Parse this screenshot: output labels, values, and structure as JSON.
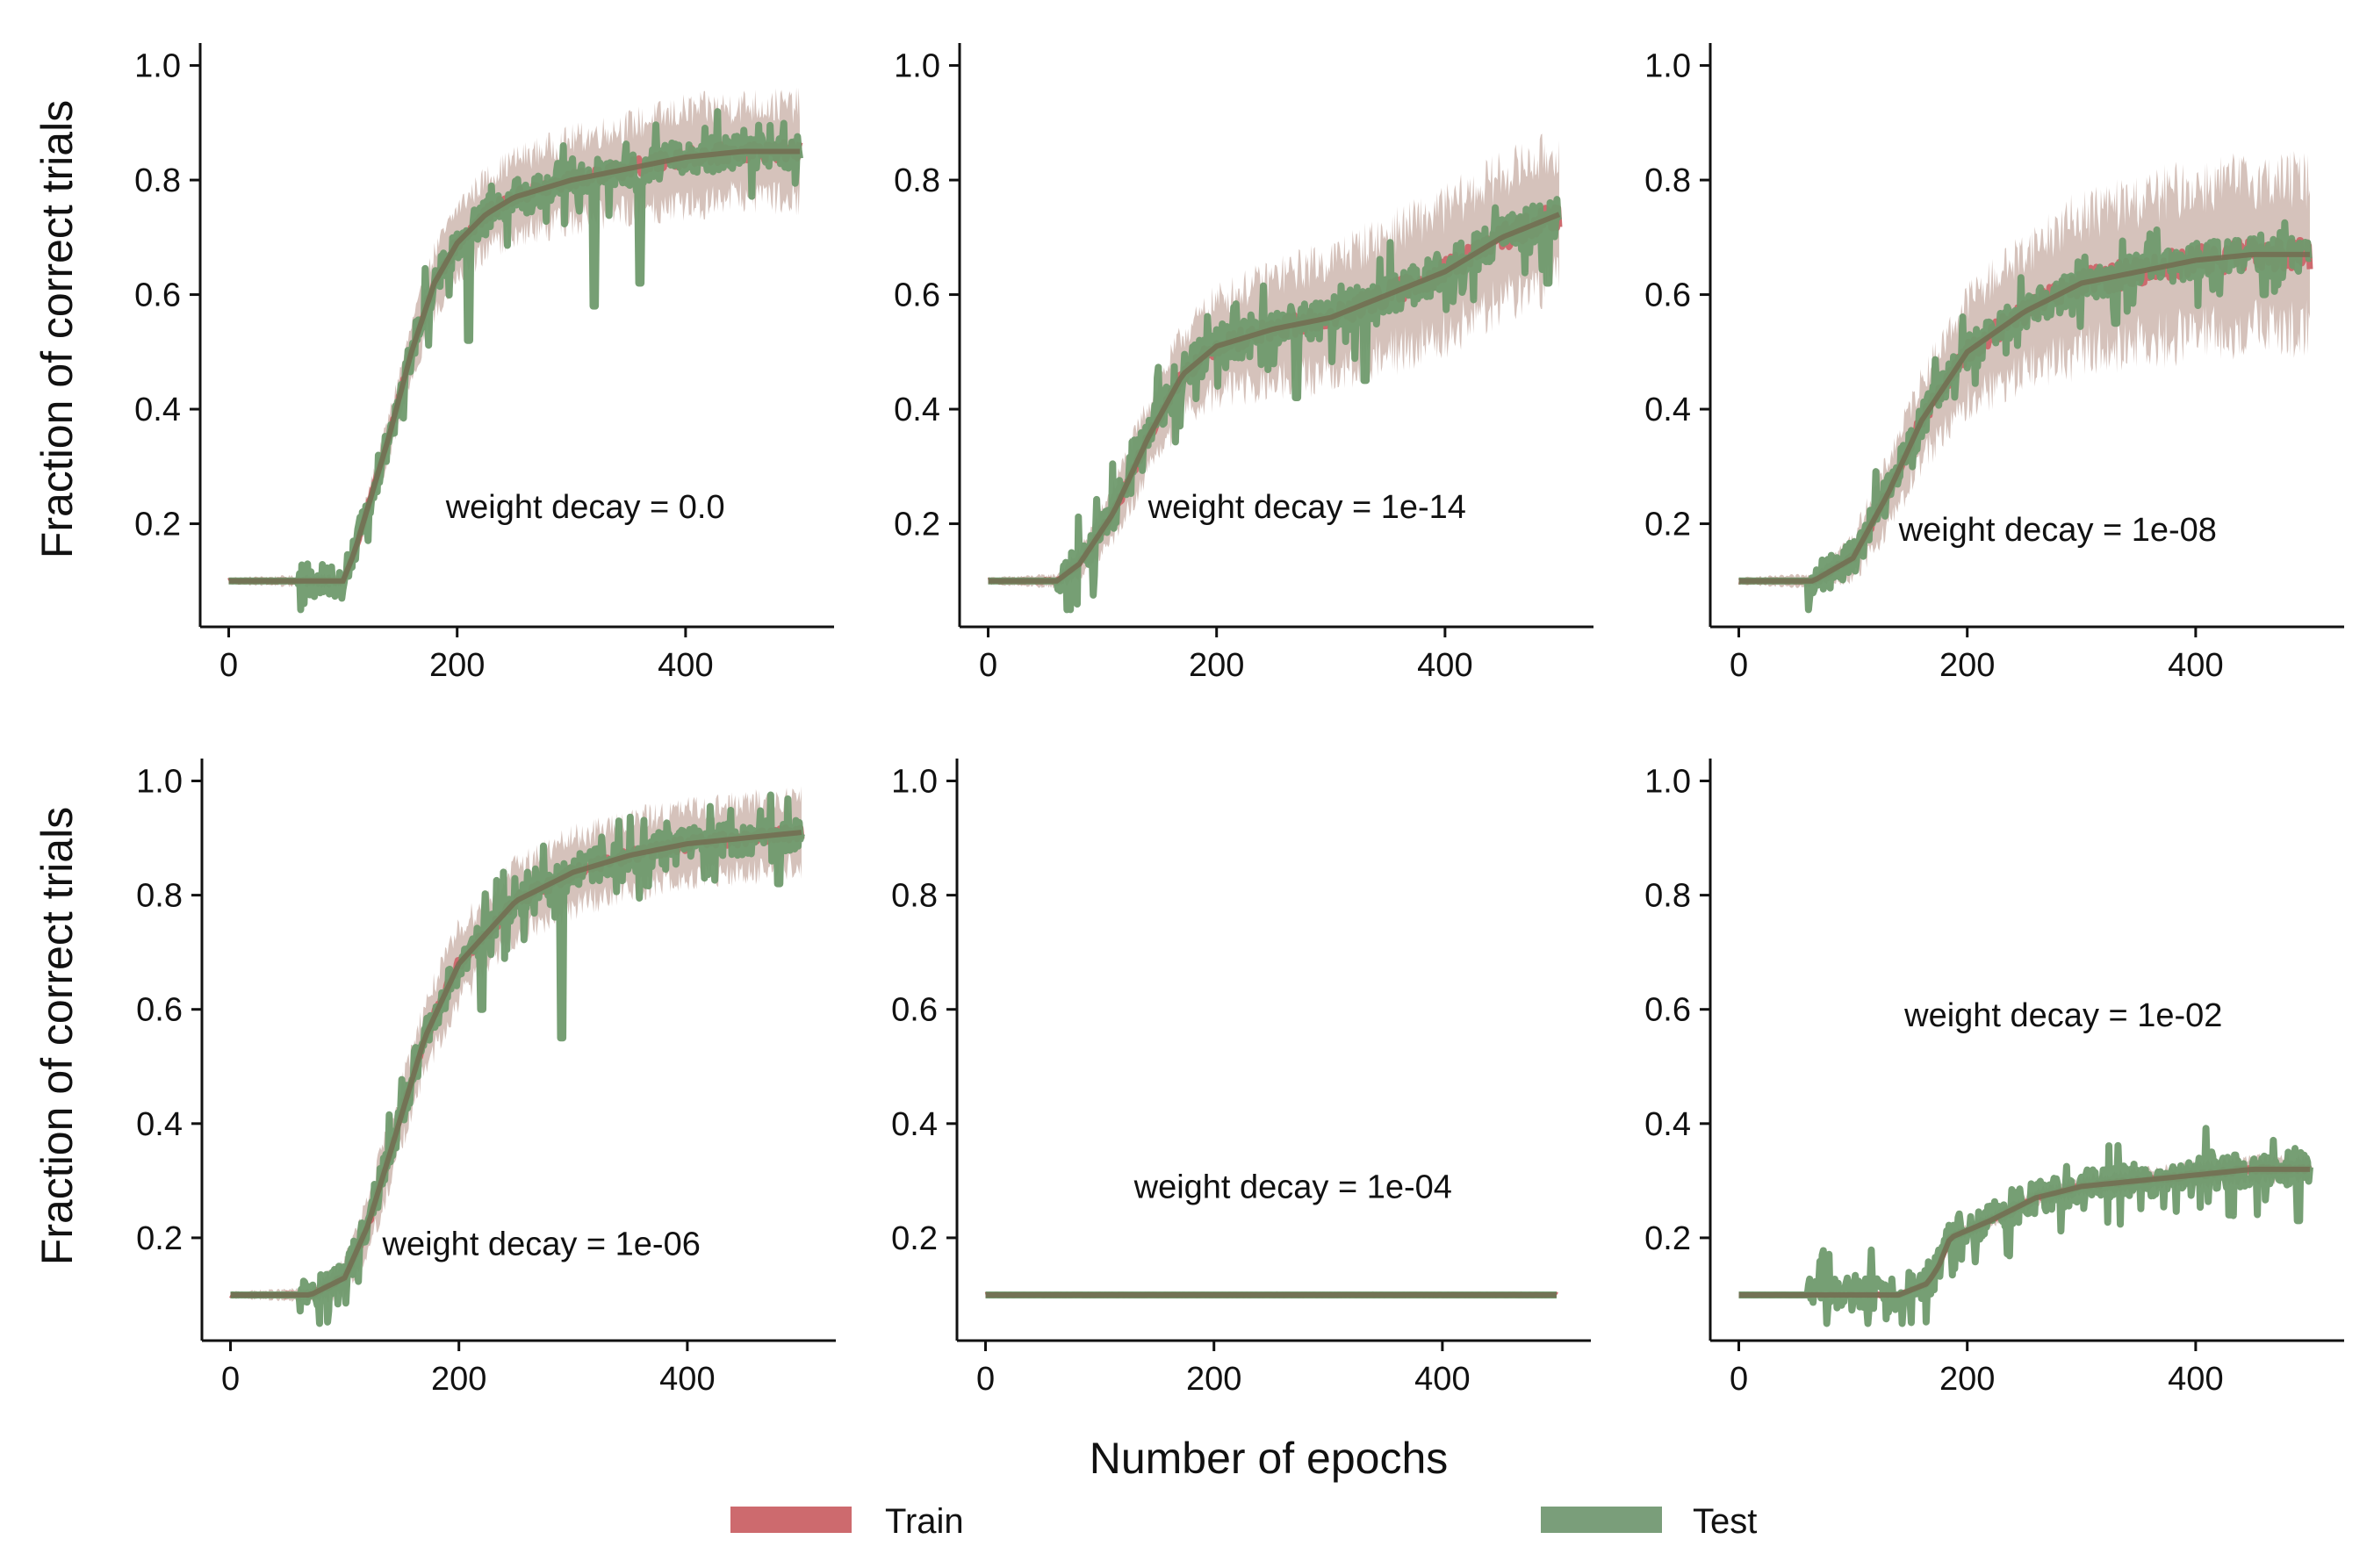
{
  "chart_data": {
    "type": "line",
    "layout": "2x3 grid",
    "xlabel": "Number of epochs",
    "ylabel": "Fraction of correct trials",
    "xticks": [
      0,
      200,
      400
    ],
    "xtick_labels": [
      "0",
      "200",
      "400"
    ],
    "yticks": [
      0.2,
      0.4,
      0.6,
      0.8,
      1.0
    ],
    "ytick_labels": [
      "0.2",
      "0.4",
      "0.6",
      "0.8",
      "1.0"
    ],
    "xlim": [
      -25,
      530
    ],
    "ylim": [
      0.02,
      1.03
    ],
    "grid": false,
    "legend": {
      "placement": "bottom-center",
      "entries": [
        {
          "name": "Train",
          "color": "#cd6a6e"
        },
        {
          "name": "Test",
          "color": "#7a9e7a"
        }
      ]
    },
    "colors": {
      "train": "#cd6a6e",
      "test": "#6f9a6d",
      "band": "#c7ada4",
      "mean": "#736a4f"
    },
    "panels": [
      {
        "annotation": "weight decay = 0.0",
        "annotation_anchor": [
          0.4,
          0.21
        ],
        "train_mean": [
          [
            0,
            0.1
          ],
          [
            100,
            0.1
          ],
          [
            110,
            0.15
          ],
          [
            125,
            0.25
          ],
          [
            140,
            0.35
          ],
          [
            160,
            0.5
          ],
          [
            180,
            0.62
          ],
          [
            200,
            0.69
          ],
          [
            225,
            0.74
          ],
          [
            250,
            0.77
          ],
          [
            300,
            0.8
          ],
          [
            350,
            0.82
          ],
          [
            400,
            0.84
          ],
          [
            450,
            0.85
          ],
          [
            500,
            0.85
          ]
        ],
        "band_halfwidth": [
          [
            0,
            0.005
          ],
          [
            100,
            0.01
          ],
          [
            150,
            0.04
          ],
          [
            200,
            0.06
          ],
          [
            300,
            0.07
          ],
          [
            400,
            0.08
          ],
          [
            500,
            0.08
          ]
        ],
        "test_noise": 0.05,
        "dips": [
          [
            320,
            0.58
          ],
          [
            210,
            0.52
          ],
          [
            360,
            0.62
          ]
        ]
      },
      {
        "annotation": "weight decay = 1e-14",
        "annotation_anchor": [
          140,
          0.21
        ],
        "train_mean": [
          [
            0,
            0.1
          ],
          [
            60,
            0.1
          ],
          [
            80,
            0.13
          ],
          [
            110,
            0.22
          ],
          [
            140,
            0.35
          ],
          [
            170,
            0.46
          ],
          [
            200,
            0.51
          ],
          [
            250,
            0.54
          ],
          [
            300,
            0.56
          ],
          [
            350,
            0.6
          ],
          [
            400,
            0.64
          ],
          [
            450,
            0.7
          ],
          [
            500,
            0.74
          ]
        ],
        "band_halfwidth": [
          [
            0,
            0.005
          ],
          [
            60,
            0.01
          ],
          [
            120,
            0.05
          ],
          [
            200,
            0.08
          ],
          [
            300,
            0.1
          ],
          [
            400,
            0.11
          ],
          [
            500,
            0.11
          ]
        ],
        "test_noise": 0.06,
        "dips": [
          [
            270,
            0.42
          ],
          [
            330,
            0.45
          ],
          [
            490,
            0.62
          ]
        ]
      },
      {
        "annotation": "weight decay = 1e-08",
        "annotation_anchor": [
          140,
          0.17
        ],
        "train_mean": [
          [
            0,
            0.1
          ],
          [
            65,
            0.1
          ],
          [
            100,
            0.14
          ],
          [
            130,
            0.25
          ],
          [
            160,
            0.38
          ],
          [
            200,
            0.5
          ],
          [
            250,
            0.57
          ],
          [
            300,
            0.62
          ],
          [
            350,
            0.64
          ],
          [
            400,
            0.66
          ],
          [
            450,
            0.67
          ],
          [
            500,
            0.67
          ]
        ],
        "band_halfwidth": [
          [
            0,
            0.005
          ],
          [
            65,
            0.01
          ],
          [
            120,
            0.05
          ],
          [
            200,
            0.09
          ],
          [
            300,
            0.12
          ],
          [
            400,
            0.13
          ],
          [
            500,
            0.13
          ]
        ],
        "test_noise": 0.05,
        "dips": [
          [
            330,
            0.55
          ],
          [
            460,
            0.6
          ]
        ]
      },
      {
        "annotation": "weight decay = 1e-06",
        "annotation_anchor": [
          133,
          0.17
        ],
        "train_mean": [
          [
            0,
            0.1
          ],
          [
            70,
            0.1
          ],
          [
            100,
            0.13
          ],
          [
            120,
            0.22
          ],
          [
            140,
            0.35
          ],
          [
            170,
            0.55
          ],
          [
            200,
            0.68
          ],
          [
            250,
            0.79
          ],
          [
            300,
            0.84
          ],
          [
            350,
            0.87
          ],
          [
            400,
            0.89
          ],
          [
            450,
            0.9
          ],
          [
            500,
            0.91
          ]
        ],
        "band_halfwidth": [
          [
            0,
            0.005
          ],
          [
            70,
            0.01
          ],
          [
            130,
            0.05
          ],
          [
            200,
            0.06
          ],
          [
            300,
            0.06
          ],
          [
            400,
            0.06
          ],
          [
            500,
            0.06
          ]
        ],
        "test_noise": 0.05,
        "dips": [
          [
            290,
            0.55
          ],
          [
            220,
            0.6
          ],
          [
            480,
            0.82
          ]
        ]
      },
      {
        "annotation": "weight decay = 1e-04",
        "annotation_anchor": [
          130,
          0.27
        ],
        "train_mean": [
          [
            0,
            0.1
          ],
          [
            500,
            0.1
          ]
        ],
        "band_halfwidth": [
          [
            0,
            0.004
          ],
          [
            500,
            0.004
          ]
        ],
        "test_noise": 0.0,
        "dips": []
      },
      {
        "annotation": "weight decay = 1e-02",
        "annotation_anchor": [
          145,
          0.57
        ],
        "train_mean": [
          [
            0,
            0.1
          ],
          [
            140,
            0.1
          ],
          [
            165,
            0.12
          ],
          [
            175,
            0.15
          ],
          [
            185,
            0.2
          ],
          [
            220,
            0.23
          ],
          [
            260,
            0.27
          ],
          [
            300,
            0.29
          ],
          [
            350,
            0.3
          ],
          [
            400,
            0.31
          ],
          [
            450,
            0.32
          ],
          [
            500,
            0.32
          ]
        ],
        "band_halfwidth": [
          [
            0,
            0.003
          ],
          [
            140,
            0.005
          ],
          [
            200,
            0.01
          ],
          [
            300,
            0.015
          ],
          [
            400,
            0.02
          ],
          [
            500,
            0.02
          ]
        ],
        "test_noise": 0.05,
        "dips": [
          [
            430,
            0.24
          ],
          [
            490,
            0.23
          ]
        ]
      }
    ]
  }
}
